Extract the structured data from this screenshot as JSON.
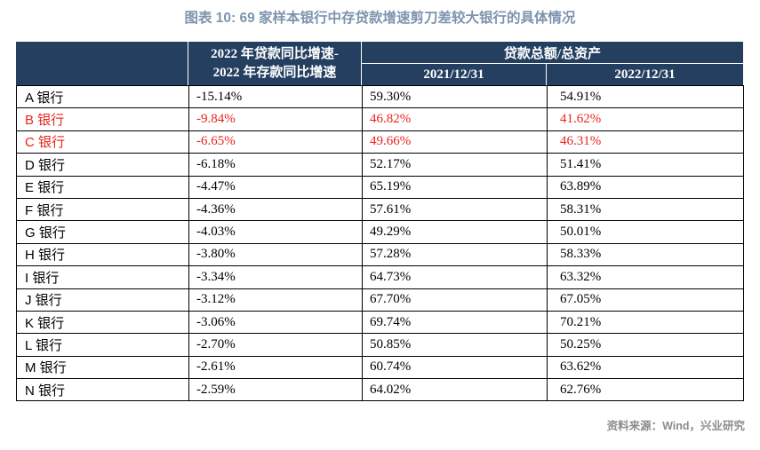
{
  "page_title": "图表 10: 69 家样本银行中存贷款增速剪刀差较大银行的具体情况",
  "source_note": "资料来源：Wind，兴业研究",
  "colors": {
    "header_bg": "#243f60",
    "header_text": "#ffffff",
    "title_text": "#7d93ae",
    "highlight_red": "#e8241c",
    "source_text": "#8c8c8c",
    "grid_border": "#000000"
  },
  "table_header": {
    "bank_col": "",
    "diff_col_line1": "2022 年贷款同比增速-",
    "diff_col_line2": "2022 年存款同比增速",
    "group_col": "贷款总额/总资产",
    "sub_col_2021": "2021/12/31",
    "sub_col_2022": "2022/12/31"
  },
  "chart_data": {
    "type": "table",
    "title": "图表 10: 69 家样本银行中存贷款增速剪刀差较大银行的具体情况",
    "columns": [
      "银行",
      "2022 年贷款同比增速-2022 年存款同比增速",
      "贷款总额/总资产 2021/12/31",
      "贷款总额/总资产 2022/12/31"
    ],
    "rows": [
      {
        "bank": "A 银行",
        "diff": "-15.14%",
        "r2021": "59.30%",
        "r2022": "54.91%",
        "red": false
      },
      {
        "bank": "B 银行",
        "diff": "-9.84%",
        "r2021": "46.82%",
        "r2022": "41.62%",
        "red": true
      },
      {
        "bank": "C 银行",
        "diff": "-6.65%",
        "r2021": "49.66%",
        "r2022": "46.31%",
        "red": true
      },
      {
        "bank": "D 银行",
        "diff": "-6.18%",
        "r2021": "52.17%",
        "r2022": "51.41%",
        "red": false
      },
      {
        "bank": "E 银行",
        "diff": "-4.47%",
        "r2021": "65.19%",
        "r2022": "63.89%",
        "red": false
      },
      {
        "bank": "F 银行",
        "diff": "-4.36%",
        "r2021": "57.61%",
        "r2022": "58.31%",
        "red": false
      },
      {
        "bank": "G 银行",
        "diff": "-4.03%",
        "r2021": "49.29%",
        "r2022": "50.01%",
        "red": false
      },
      {
        "bank": "H 银行",
        "diff": "-3.80%",
        "r2021": "57.28%",
        "r2022": "58.33%",
        "red": false
      },
      {
        "bank": "I 银行",
        "diff": "-3.34%",
        "r2021": "64.73%",
        "r2022": "63.32%",
        "red": false
      },
      {
        "bank": "J 银行",
        "diff": "-3.12%",
        "r2021": "67.70%",
        "r2022": "67.05%",
        "red": false
      },
      {
        "bank": "K 银行",
        "diff": "-3.06%",
        "r2021": "69.74%",
        "r2022": "70.21%",
        "red": false
      },
      {
        "bank": "L 银行",
        "diff": "-2.70%",
        "r2021": "50.85%",
        "r2022": "50.25%",
        "red": false
      },
      {
        "bank": "M 银行",
        "diff": "-2.61%",
        "r2021": "60.74%",
        "r2022": "63.62%",
        "red": false
      },
      {
        "bank": "N 银行",
        "diff": "-2.59%",
        "r2021": "64.02%",
        "r2022": "62.76%",
        "red": false
      }
    ]
  }
}
